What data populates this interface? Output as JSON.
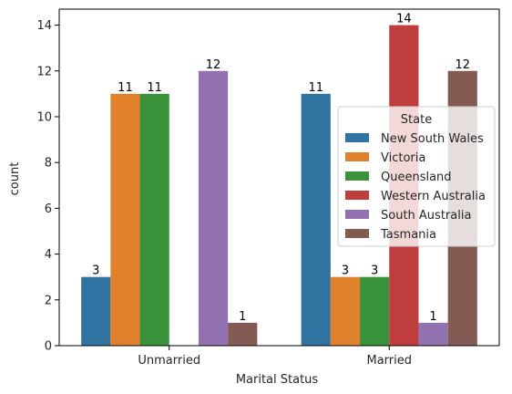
{
  "chart_data": {
    "type": "bar",
    "xlabel": "Marital Status",
    "ylabel": "count",
    "categories": [
      "Unmarried",
      "Married"
    ],
    "series": [
      {
        "name": "New South Wales",
        "color": "#3274a1",
        "values": [
          3,
          11
        ]
      },
      {
        "name": "Victoria",
        "color": "#e1812c",
        "values": [
          11,
          3
        ]
      },
      {
        "name": "Queensland",
        "color": "#3a923a",
        "values": [
          11,
          3
        ]
      },
      {
        "name": "Western Australia",
        "color": "#c03d3e",
        "values": [
          0,
          14
        ]
      },
      {
        "name": "South Australia",
        "color": "#9372b2",
        "values": [
          12,
          1
        ]
      },
      {
        "name": "Tasmania",
        "color": "#845b53",
        "values": [
          1,
          12
        ]
      }
    ],
    "data_labels": [
      [
        "3",
        "11"
      ],
      [
        "11",
        "3"
      ],
      [
        "11",
        "3"
      ],
      [
        "",
        "14"
      ],
      [
        "12",
        "1"
      ],
      [
        "1",
        "12"
      ]
    ],
    "ylim": [
      0,
      14.7
    ],
    "yticks": [
      0,
      2,
      4,
      6,
      8,
      10,
      12,
      14
    ],
    "legend": {
      "title": "State",
      "position": "center-right"
    },
    "grid": false
  }
}
